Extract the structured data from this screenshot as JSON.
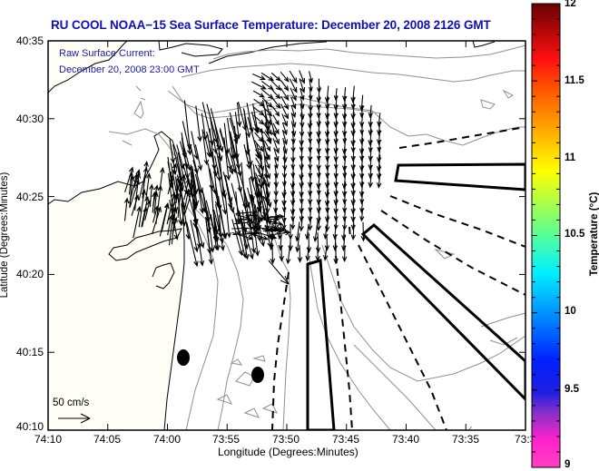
{
  "title": "RU COOL  NOAA−15  Sea Surface Temperature:  December 20, 2008 2126 GMT",
  "annotation": {
    "line1": "Raw Surface Current:",
    "line2": "December 20, 2008 23:00 GMT"
  },
  "scale_arrow": {
    "label": "50 cm/s"
  },
  "x_axis": {
    "title": "Longitude (Degrees:Minutes)",
    "ticks": [
      "74:10",
      "74:05",
      "74:00",
      "73:55",
      "73:50",
      "73:45",
      "73:40",
      "73:35",
      "73:3"
    ]
  },
  "y_axis": {
    "title": "Latitude (Degrees:Minutes)",
    "ticks": [
      "40:35",
      "40:30",
      "40:25",
      "40:20",
      "40:15",
      "40:10"
    ]
  },
  "colorbar": {
    "title": "Temperature (°C)",
    "ticks": [
      "12",
      "11.5",
      "11",
      "10.5",
      "10",
      "9.5",
      "9"
    ],
    "range": [
      9,
      12
    ],
    "colors": [
      "#ff33cc",
      "#ff44cc",
      "#7a33cc",
      "#1010ff",
      "#1080ff",
      "#00e8ff",
      "#55ff99",
      "#ccff33",
      "#ffff00",
      "#ffb000",
      "#ff6000",
      "#ff1010",
      "#c00000",
      "#700000"
    ]
  },
  "colors": {
    "land": "#fffef6",
    "sea": "#ffffff",
    "title_text": "#1010b4",
    "annotation_text": "#1a1aa8",
    "bathymetry": "#909090",
    "coastline": "#000000"
  }
}
